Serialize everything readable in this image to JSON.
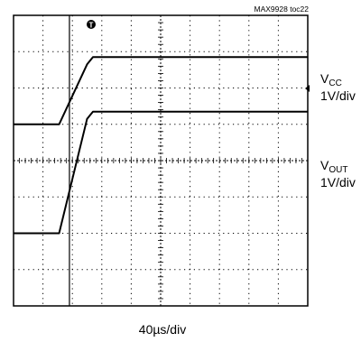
{
  "figure_id": "MAX9928 toc22",
  "trigger_marker": "T",
  "timebase_label": "40µs/div",
  "colors": {
    "trace": "#000000",
    "grid": "#000000",
    "background": "#ffffff"
  },
  "chart_data": {
    "type": "line",
    "title": "",
    "xlabel": "40µs/div",
    "ylabel": "",
    "x_divisions": 10,
    "y_divisions": 8,
    "x_unit": "div",
    "y_unit": "div",
    "grid": true,
    "trigger_x_div": 1.9,
    "series": [
      {
        "label_main": "V",
        "label_sub": "CC",
        "scale": "1V/div",
        "x": [
          0,
          1.55,
          2.5,
          2.7,
          10
        ],
        "y": [
          5.0,
          5.0,
          6.65,
          6.85,
          6.85
        ]
      },
      {
        "label_main": "V",
        "label_sub": "OUT",
        "scale": "1V/div",
        "x": [
          0,
          1.55,
          2.5,
          2.7,
          10
        ],
        "y": [
          2.0,
          2.0,
          5.15,
          5.35,
          5.35
        ]
      }
    ]
  }
}
